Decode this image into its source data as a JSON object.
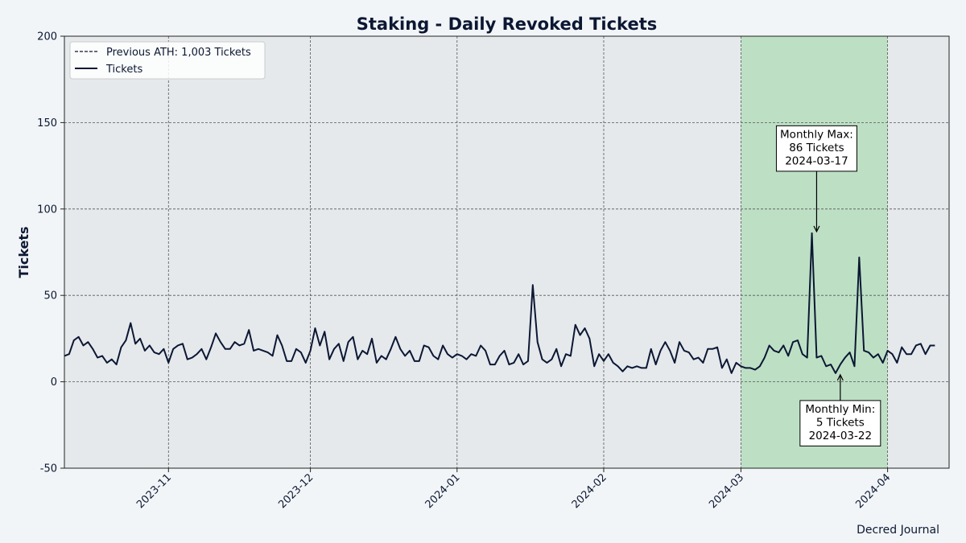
{
  "chart_data": {
    "type": "line",
    "title": "Staking - Daily Revoked Tickets",
    "xlabel": "",
    "ylabel": "Tickets",
    "ylim": [
      -50,
      200
    ],
    "yticks": [
      -50,
      0,
      50,
      100,
      150,
      200
    ],
    "xlim": [
      "2023-10-10",
      "2024-04-14"
    ],
    "xticks": [
      "2023-11",
      "2023-12",
      "2024-01",
      "2024-02",
      "2024-03",
      "2024-04"
    ],
    "grid": true,
    "legend_position": "top-left",
    "legend": [
      {
        "label": "Previous ATH: 1,003 Tickets",
        "style": "dashed"
      },
      {
        "label": "Tickets",
        "style": "solid"
      }
    ],
    "highlight_range": [
      "2024-03-01",
      "2024-04-01"
    ],
    "series": [
      {
        "name": "Tickets",
        "x_start": "2023-10-10",
        "step_days": 1,
        "values": [
          15,
          16,
          24,
          26,
          21,
          23,
          19,
          14,
          15,
          11,
          13,
          10,
          20,
          24,
          34,
          22,
          25,
          18,
          21,
          17,
          16,
          19,
          11,
          19,
          21,
          22,
          13,
          14,
          16,
          19,
          13,
          20,
          28,
          23,
          19,
          19,
          23,
          21,
          22,
          30,
          18,
          19,
          18,
          17,
          15,
          27,
          21,
          12,
          12,
          19,
          17,
          11,
          18,
          31,
          21,
          29,
          13,
          19,
          22,
          12,
          23,
          26,
          13,
          18,
          16,
          25,
          11,
          15,
          13,
          19,
          26,
          19,
          15,
          18,
          12,
          12,
          21,
          20,
          15,
          13,
          21,
          16,
          14,
          16,
          15,
          13,
          16,
          15,
          21,
          18,
          10,
          10,
          15,
          18,
          10,
          11,
          16,
          10,
          12,
          56,
          23,
          13,
          11,
          13,
          19,
          9,
          16,
          15,
          33,
          27,
          31,
          25,
          9,
          16,
          12,
          16,
          11,
          9,
          6,
          9,
          8,
          9,
          8,
          8,
          19,
          10,
          18,
          23,
          18,
          11,
          23,
          18,
          17,
          13,
          14,
          11,
          19,
          19,
          20,
          8,
          13,
          5,
          11,
          9,
          8,
          8,
          7,
          9,
          14,
          21,
          18,
          17,
          21,
          15,
          23,
          24,
          16,
          14,
          86,
          14,
          15,
          9,
          10,
          5,
          10,
          14,
          17,
          9,
          72,
          18,
          17,
          14,
          16,
          11,
          18,
          16,
          11,
          20,
          16,
          16,
          21,
          22,
          16,
          21,
          21
        ]
      }
    ],
    "annotations": [
      {
        "lines": [
          "Monthly Max:",
          "86 Tickets",
          "2024-03-17"
        ],
        "x": "2024-03-17",
        "y": 86,
        "text_y": 135
      },
      {
        "lines": [
          "Monthly Min:",
          "5 Tickets",
          "2024-03-22"
        ],
        "x": "2024-03-22",
        "y": 5,
        "text_y": -24
      }
    ],
    "credit": "Decred Journal"
  },
  "colors": {
    "line": "#0c1733",
    "plot_bg": "#e5e9ec",
    "page_bg": "#f2f5f7",
    "highlight": "#bde0c5",
    "grid": "#555555"
  }
}
